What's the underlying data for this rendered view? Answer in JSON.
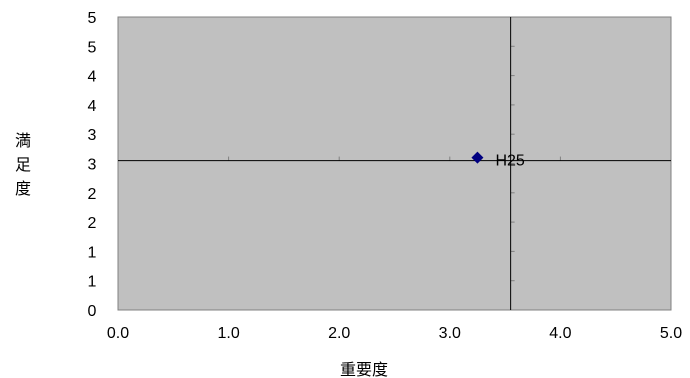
{
  "chart_data": {
    "type": "scatter",
    "title": "",
    "xlabel": "重要度",
    "ylabel": "満足度",
    "xlim": [
      0,
      5
    ],
    "ylim": [
      0,
      5
    ],
    "x_ticks": [
      "0.0",
      "1.0",
      "2.0",
      "3.0",
      "4.0",
      "5.0"
    ],
    "y_ticks": [
      "0",
      "1",
      "1",
      "2",
      "2",
      "3",
      "3",
      "4",
      "4",
      "5",
      "5"
    ],
    "grid": false,
    "legend": "none",
    "plot_background": "#c0c0c0",
    "reference_lines": {
      "x": 3.55,
      "y": 2.55
    },
    "series": [
      {
        "marker": "diamond",
        "color": "#000080",
        "points": [
          {
            "label": "H25",
            "x": 3.25,
            "y": 2.6
          }
        ]
      }
    ]
  }
}
